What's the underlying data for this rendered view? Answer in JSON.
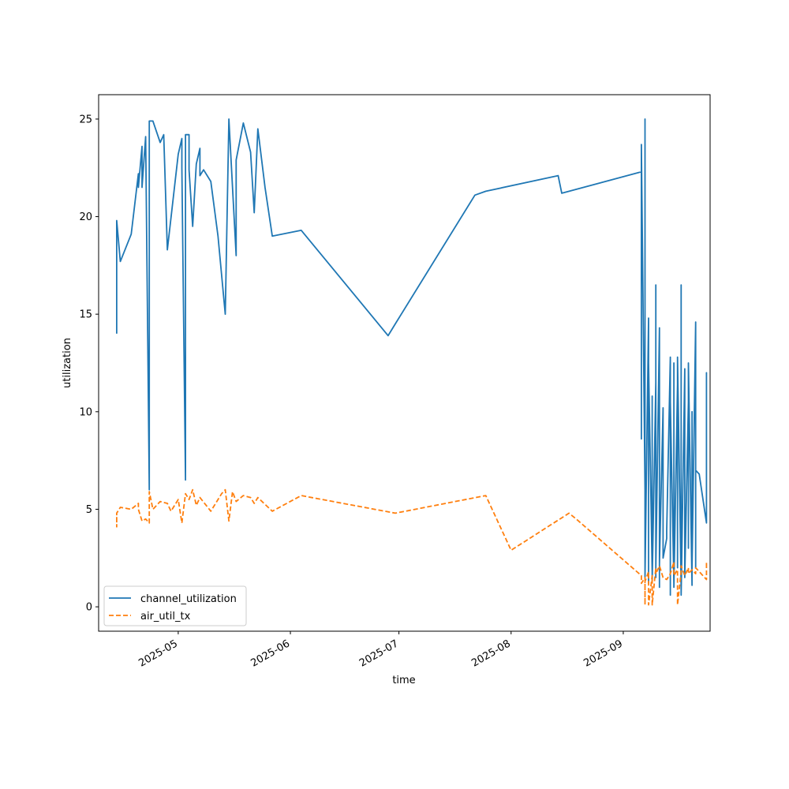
{
  "chart_data": {
    "type": "line",
    "title": "",
    "xlabel": "time",
    "ylabel": "utilization",
    "x_type": "date",
    "xlim": [
      "2025-04-09",
      "2025-09-25"
    ],
    "ylim": [
      -1.25,
      26.25
    ],
    "x_ticks": [
      "2025-05-01",
      "2025-06-01",
      "2025-07-01",
      "2025-08-01",
      "2025-09-01"
    ],
    "x_tick_labels": [
      "2025-05",
      "2025-06",
      "2025-07",
      "2025-08",
      "2025-09"
    ],
    "y_ticks": [
      0,
      5,
      10,
      15,
      20,
      25
    ],
    "y_tick_labels": [
      "0",
      "5",
      "10",
      "15",
      "20",
      "25"
    ],
    "grid": false,
    "legend": {
      "position": "lower-left"
    },
    "colors": {
      "channel_utilization": "#1f77b4",
      "air_util_tx": "#ff7f0e"
    },
    "series": [
      {
        "name": "channel_utilization",
        "style": "solid",
        "points": [
          [
            "2025-04-14",
            14.0
          ],
          [
            "2025-04-14",
            14.8
          ],
          [
            "2025-04-14",
            19.8
          ],
          [
            "2025-04-15",
            17.7
          ],
          [
            "2025-04-18",
            19.1
          ],
          [
            "2025-04-20",
            22.2
          ],
          [
            "2025-04-20",
            21.5
          ],
          [
            "2025-04-21",
            23.6
          ],
          [
            "2025-04-21",
            21.5
          ],
          [
            "2025-04-22",
            24.1
          ],
          [
            "2025-04-23",
            6.0
          ],
          [
            "2025-04-23",
            24.9
          ],
          [
            "2025-04-24",
            24.9
          ],
          [
            "2025-04-26",
            23.8
          ],
          [
            "2025-04-27",
            24.2
          ],
          [
            "2025-04-28",
            18.3
          ],
          [
            "2025-05-01",
            23.2
          ],
          [
            "2025-05-02",
            24.0
          ],
          [
            "2025-05-02",
            22.5
          ],
          [
            "2025-05-03",
            6.5
          ],
          [
            "2025-05-03",
            24.2
          ],
          [
            "2025-05-04",
            24.2
          ],
          [
            "2025-05-04",
            22.4
          ],
          [
            "2025-05-05",
            19.5
          ],
          [
            "2025-05-06",
            22.7
          ],
          [
            "2025-05-07",
            23.5
          ],
          [
            "2025-05-07",
            22.1
          ],
          [
            "2025-05-08",
            22.4
          ],
          [
            "2025-05-10",
            21.8
          ],
          [
            "2025-05-12",
            19.0
          ],
          [
            "2025-05-14",
            15.0
          ],
          [
            "2025-05-15",
            25.0
          ],
          [
            "2025-05-17",
            18.0
          ],
          [
            "2025-05-17",
            22.9
          ],
          [
            "2025-05-19",
            24.8
          ],
          [
            "2025-05-21",
            23.3
          ],
          [
            "2025-05-22",
            20.2
          ],
          [
            "2025-05-23",
            24.5
          ],
          [
            "2025-05-25",
            21.5
          ],
          [
            "2025-05-27",
            19.0
          ],
          [
            "2025-06-04",
            19.3
          ],
          [
            "2025-06-28",
            13.9
          ],
          [
            "2025-06-30",
            14.5
          ],
          [
            "2025-07-22",
            21.1
          ],
          [
            "2025-07-25",
            21.3
          ],
          [
            "2025-08-14",
            22.1
          ],
          [
            "2025-08-15",
            21.2
          ],
          [
            "2025-09-06",
            22.3
          ],
          [
            "2025-09-06",
            8.6
          ],
          [
            "2025-09-06",
            23.7
          ],
          [
            "2025-09-07",
            6.0
          ],
          [
            "2025-09-07",
            25.0
          ],
          [
            "2025-09-07",
            1.5
          ],
          [
            "2025-09-08",
            14.8
          ],
          [
            "2025-09-08",
            1.2
          ],
          [
            "2025-09-08",
            12.5
          ],
          [
            "2025-09-09",
            1.8
          ],
          [
            "2025-09-09",
            10.8
          ],
          [
            "2025-09-09",
            1.3
          ],
          [
            "2025-09-10",
            11.5
          ],
          [
            "2025-09-10",
            1.5
          ],
          [
            "2025-09-10",
            16.5
          ],
          [
            "2025-09-10",
            2.0
          ],
          [
            "2025-09-11",
            14.3
          ],
          [
            "2025-09-11",
            1.0
          ],
          [
            "2025-09-11",
            14.1
          ],
          [
            "2025-09-11",
            2.2
          ],
          [
            "2025-09-12",
            10.2
          ],
          [
            "2025-09-12",
            2.5
          ],
          [
            "2025-09-13",
            3.5
          ],
          [
            "2025-09-13",
            3.9
          ],
          [
            "2025-09-14",
            12.8
          ],
          [
            "2025-09-14",
            0.6
          ],
          [
            "2025-09-14",
            10.5
          ],
          [
            "2025-09-15",
            1.2
          ],
          [
            "2025-09-15",
            12.5
          ],
          [
            "2025-09-15",
            1.0
          ],
          [
            "2025-09-16",
            11.4
          ],
          [
            "2025-09-16",
            2.0
          ],
          [
            "2025-09-16",
            12.8
          ],
          [
            "2025-09-17",
            1.0
          ],
          [
            "2025-09-17",
            16.5
          ],
          [
            "2025-09-17",
            0.6
          ],
          [
            "2025-09-18",
            12.2
          ],
          [
            "2025-09-18",
            1.5
          ],
          [
            "2025-09-19",
            10.5
          ],
          [
            "2025-09-19",
            3.0
          ],
          [
            "2025-09-19",
            12.5
          ],
          [
            "2025-09-20",
            1.1
          ],
          [
            "2025-09-20",
            10.0
          ],
          [
            "2025-09-20",
            2.0
          ],
          [
            "2025-09-21",
            14.6
          ],
          [
            "2025-09-21",
            2.0
          ],
          [
            "2025-09-21",
            7.0
          ],
          [
            "2025-09-22",
            6.8
          ],
          [
            "2025-09-24",
            4.3
          ],
          [
            "2025-09-24",
            8.1
          ],
          [
            "2025-09-24",
            7.3
          ],
          [
            "2025-09-24",
            12.0
          ],
          [
            "2025-09-24",
            7.5
          ]
        ]
      },
      {
        "name": "air_util_tx",
        "style": "dashed",
        "points": [
          [
            "2025-04-14",
            4.6
          ],
          [
            "2025-04-14",
            4.1
          ],
          [
            "2025-04-14",
            4.8
          ],
          [
            "2025-04-15",
            5.1
          ],
          [
            "2025-04-18",
            5.0
          ],
          [
            "2025-04-20",
            5.3
          ],
          [
            "2025-04-20",
            5.0
          ],
          [
            "2025-04-21",
            4.4
          ],
          [
            "2025-04-22",
            4.5
          ],
          [
            "2025-04-23",
            4.3
          ],
          [
            "2025-04-23",
            5.9
          ],
          [
            "2025-04-24",
            5.0
          ],
          [
            "2025-04-26",
            5.4
          ],
          [
            "2025-04-28",
            5.3
          ],
          [
            "2025-04-29",
            4.9
          ],
          [
            "2025-05-01",
            5.5
          ],
          [
            "2025-05-02",
            4.3
          ],
          [
            "2025-05-03",
            5.8
          ],
          [
            "2025-05-04",
            5.5
          ],
          [
            "2025-05-05",
            6.0
          ],
          [
            "2025-05-06",
            5.2
          ],
          [
            "2025-05-07",
            5.6
          ],
          [
            "2025-05-10",
            4.9
          ],
          [
            "2025-05-13",
            5.8
          ],
          [
            "2025-05-14",
            6.0
          ],
          [
            "2025-05-15",
            4.4
          ],
          [
            "2025-05-16",
            5.9
          ],
          [
            "2025-05-17",
            5.4
          ],
          [
            "2025-05-19",
            5.7
          ],
          [
            "2025-05-21",
            5.6
          ],
          [
            "2025-05-22",
            5.3
          ],
          [
            "2025-05-23",
            5.6
          ],
          [
            "2025-05-27",
            4.9
          ],
          [
            "2025-06-04",
            5.7
          ],
          [
            "2025-06-30",
            4.8
          ],
          [
            "2025-07-25",
            5.7
          ],
          [
            "2025-08-01",
            2.9
          ],
          [
            "2025-08-17",
            4.8
          ],
          [
            "2025-08-19",
            4.5
          ],
          [
            "2025-09-06",
            1.6
          ],
          [
            "2025-09-06",
            1.2
          ],
          [
            "2025-09-07",
            1.5
          ],
          [
            "2025-09-07",
            0.1
          ],
          [
            "2025-09-07",
            1.3
          ],
          [
            "2025-09-08",
            1.8
          ],
          [
            "2025-09-08",
            0.1
          ],
          [
            "2025-09-09",
            1.6
          ],
          [
            "2025-09-09",
            0.1
          ],
          [
            "2025-09-10",
            2.0
          ],
          [
            "2025-09-10",
            1.7
          ],
          [
            "2025-09-11",
            2.1
          ],
          [
            "2025-09-12",
            1.5
          ],
          [
            "2025-09-13",
            1.4
          ],
          [
            "2025-09-14",
            1.7
          ],
          [
            "2025-09-15",
            2.3
          ],
          [
            "2025-09-15",
            1.6
          ],
          [
            "2025-09-16",
            1.9
          ],
          [
            "2025-09-16",
            0.1
          ],
          [
            "2025-09-17",
            1.8
          ],
          [
            "2025-09-17",
            2.1
          ],
          [
            "2025-09-18",
            1.6
          ],
          [
            "2025-09-19",
            2.0
          ],
          [
            "2025-09-19",
            1.7
          ],
          [
            "2025-09-20",
            1.9
          ],
          [
            "2025-09-21",
            1.7
          ],
          [
            "2025-09-21",
            2.0
          ],
          [
            "2025-09-24",
            1.4
          ],
          [
            "2025-09-24",
            2.3
          ],
          [
            "2025-09-24",
            1.9
          ]
        ]
      }
    ]
  }
}
